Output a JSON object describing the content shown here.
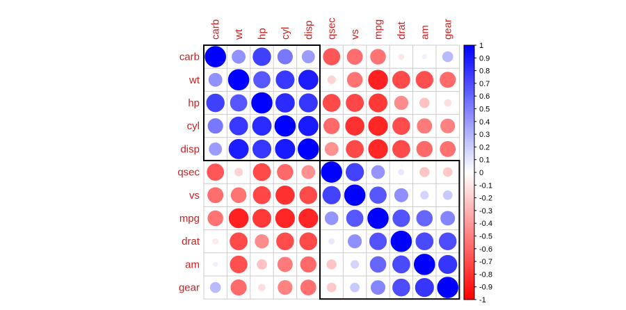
{
  "chart_data": {
    "type": "heatmap",
    "variables": [
      "carb",
      "wt",
      "hp",
      "cyl",
      "disp",
      "qsec",
      "vs",
      "mpg",
      "drat",
      "am",
      "gear"
    ],
    "matrix": [
      [
        1.0,
        0.43,
        0.75,
        0.53,
        0.39,
        -0.66,
        -0.57,
        -0.55,
        -0.09,
        0.06,
        0.27
      ],
      [
        0.43,
        1.0,
        0.66,
        0.78,
        0.89,
        -0.17,
        -0.55,
        -0.87,
        -0.71,
        -0.69,
        -0.58
      ],
      [
        0.75,
        0.66,
        1.0,
        0.83,
        0.79,
        -0.71,
        -0.72,
        -0.78,
        -0.45,
        -0.24,
        -0.13
      ],
      [
        0.53,
        0.78,
        0.83,
        1.0,
        0.9,
        -0.59,
        -0.81,
        -0.85,
        -0.7,
        -0.52,
        -0.49
      ],
      [
        0.39,
        0.89,
        0.79,
        0.9,
        1.0,
        -0.43,
        -0.71,
        -0.85,
        -0.71,
        -0.59,
        -0.56
      ],
      [
        -0.66,
        -0.17,
        -0.71,
        -0.59,
        -0.43,
        1.0,
        0.74,
        0.42,
        0.09,
        -0.23,
        -0.21
      ],
      [
        -0.57,
        -0.55,
        -0.72,
        -0.81,
        -0.71,
        0.74,
        1.0,
        0.66,
        0.44,
        0.17,
        0.21
      ],
      [
        -0.55,
        -0.87,
        -0.78,
        -0.85,
        -0.85,
        0.42,
        0.66,
        1.0,
        0.68,
        0.6,
        0.48
      ],
      [
        -0.09,
        -0.71,
        -0.45,
        -0.7,
        -0.71,
        0.09,
        0.44,
        0.68,
        1.0,
        0.71,
        0.7
      ],
      [
        0.06,
        -0.69,
        -0.24,
        -0.52,
        -0.59,
        -0.23,
        0.17,
        0.6,
        0.71,
        1.0,
        0.79
      ],
      [
        0.27,
        -0.58,
        -0.13,
        -0.49,
        -0.56,
        -0.21,
        0.21,
        0.48,
        0.7,
        0.79,
        1.0
      ]
    ],
    "clusters": [
      {
        "start": 0,
        "end": 4
      },
      {
        "start": 5,
        "end": 10
      }
    ],
    "colorbar": {
      "min": -1,
      "max": 1,
      "ticks": [
        "1",
        "0.9",
        "0.8",
        "0.7",
        "0.6",
        "0.5",
        "0.4",
        "0.3",
        "0.2",
        "0.1",
        "0",
        "-0.1",
        "-0.2",
        "-0.3",
        "-0.4",
        "-0.5",
        "-0.6",
        "-0.7",
        "-0.8",
        "-0.9",
        "-1"
      ],
      "tick_values": [
        1,
        0.9,
        0.8,
        0.7,
        0.6,
        0.5,
        0.4,
        0.3,
        0.2,
        0.1,
        0,
        -0.1,
        -0.2,
        -0.3,
        -0.4,
        -0.5,
        -0.6,
        -0.7,
        -0.8,
        -0.9,
        -1
      ],
      "position": "right"
    },
    "colors": {
      "positive": "#0000ff",
      "negative": "#ff0000",
      "neutral": "#ffffff",
      "label": "#cc2222",
      "grid": "#cccccc",
      "cluster_box": "#000000"
    },
    "title": "",
    "xlabel": "",
    "ylabel": ""
  }
}
